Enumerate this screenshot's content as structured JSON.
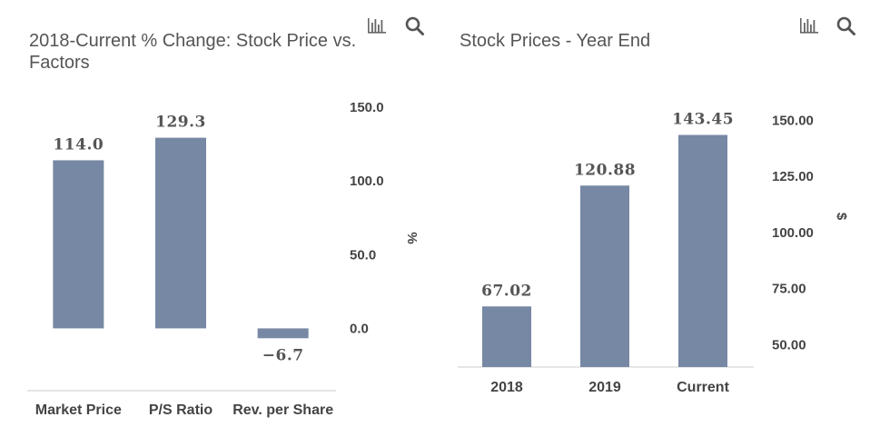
{
  "chart_data": [
    {
      "type": "bar",
      "title": "2018-Current % Change: Stock Price vs. Factors",
      "categories": [
        "Market Price",
        "P/S Ratio",
        "Rev. per Share"
      ],
      "values": [
        114.0,
        129.3,
        -6.7
      ],
      "value_labels": [
        "114.0",
        "129.3",
        "−6.7"
      ],
      "ylabel": "%",
      "xlabel": "",
      "ylim": [
        -25,
        150
      ],
      "yticks": [
        0,
        50,
        100,
        150
      ],
      "ytick_labels": [
        "0.0",
        "50.0",
        "100.0",
        "150.0"
      ],
      "y_axis_side": "right",
      "grid": false,
      "bar_color": "#7788a4"
    },
    {
      "type": "bar",
      "title": "Stock Prices - Year End",
      "categories": [
        "2018",
        "2019",
        "Current"
      ],
      "values": [
        67.02,
        120.88,
        143.45
      ],
      "value_labels": [
        "67.02",
        "120.88",
        "143.45"
      ],
      "ylabel": "$",
      "xlabel": "",
      "ylim": [
        40,
        155
      ],
      "yticks": [
        50,
        75,
        100,
        125,
        150
      ],
      "ytick_labels": [
        "50.00",
        "75.00",
        "100.00",
        "125.00",
        "150.00"
      ],
      "y_axis_side": "right",
      "grid": false,
      "bar_color": "#7788a4"
    }
  ],
  "toolbar": {
    "icons": [
      "bar-chart-icon",
      "search-icon"
    ]
  }
}
